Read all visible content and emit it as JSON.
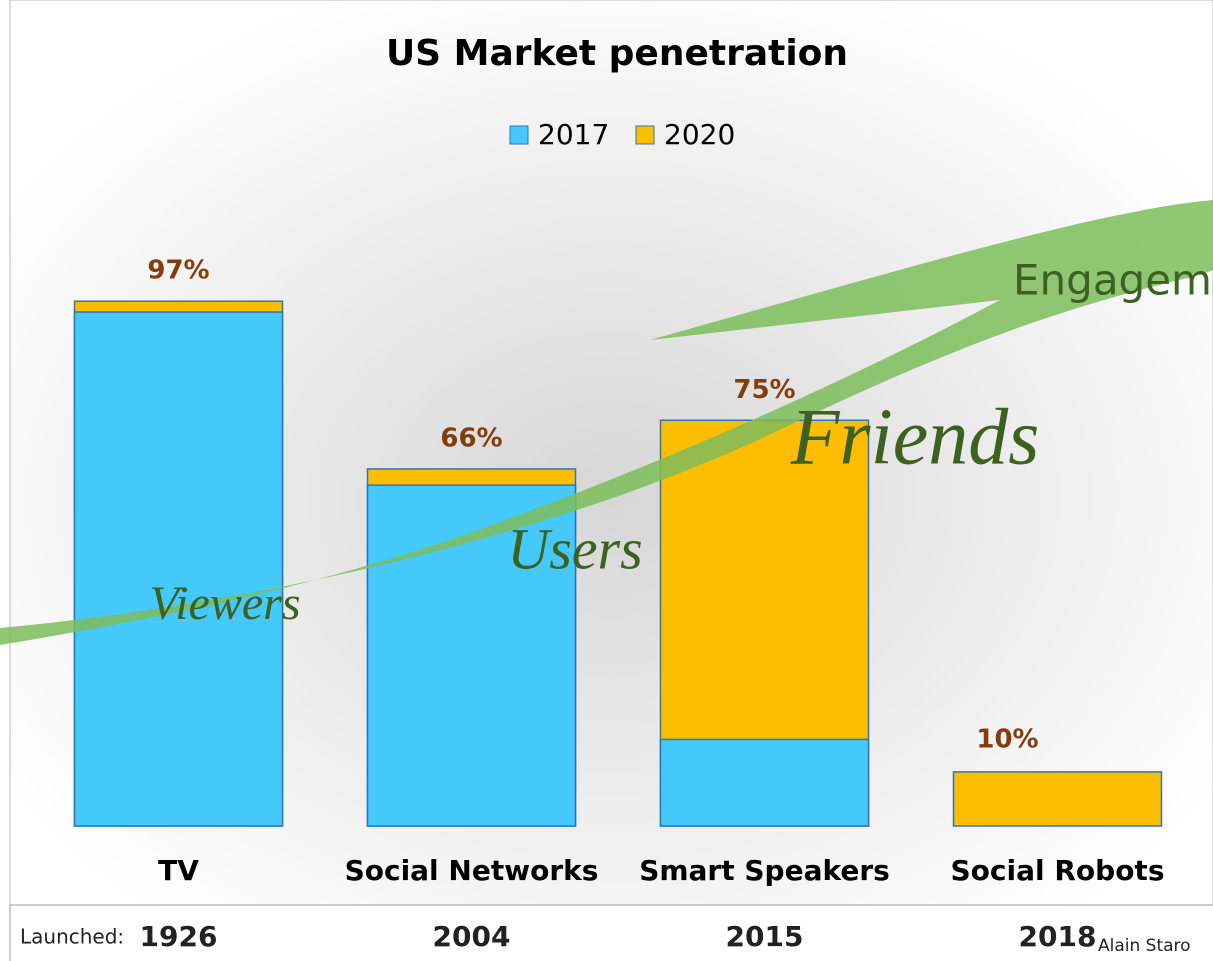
{
  "chart_data": {
    "type": "bar",
    "title": "US Market penetration",
    "categories": [
      "TV",
      "Social Networks",
      "Smart Speakers",
      "Social Robots"
    ],
    "series": [
      {
        "name": "2020",
        "color": "#fdbd00",
        "values": [
          97,
          66,
          75,
          10
        ],
        "value_labels": [
          "97%",
          "66%",
          "75%",
          "10%"
        ]
      },
      {
        "name": "2017",
        "color": "#45c8fa",
        "values": [
          95,
          63,
          16,
          0
        ]
      }
    ],
    "legend_order": [
      "2017",
      "2020"
    ],
    "ylim": [
      0,
      100
    ],
    "grid": false,
    "legend": "top",
    "launch_label": "Launched:",
    "launch_years": [
      "1926",
      "2004",
      "2015",
      "2018"
    ],
    "annotations": [
      "Viewers",
      "Users",
      "Friends",
      "Engagem"
    ],
    "credit": "Alain Staro"
  }
}
